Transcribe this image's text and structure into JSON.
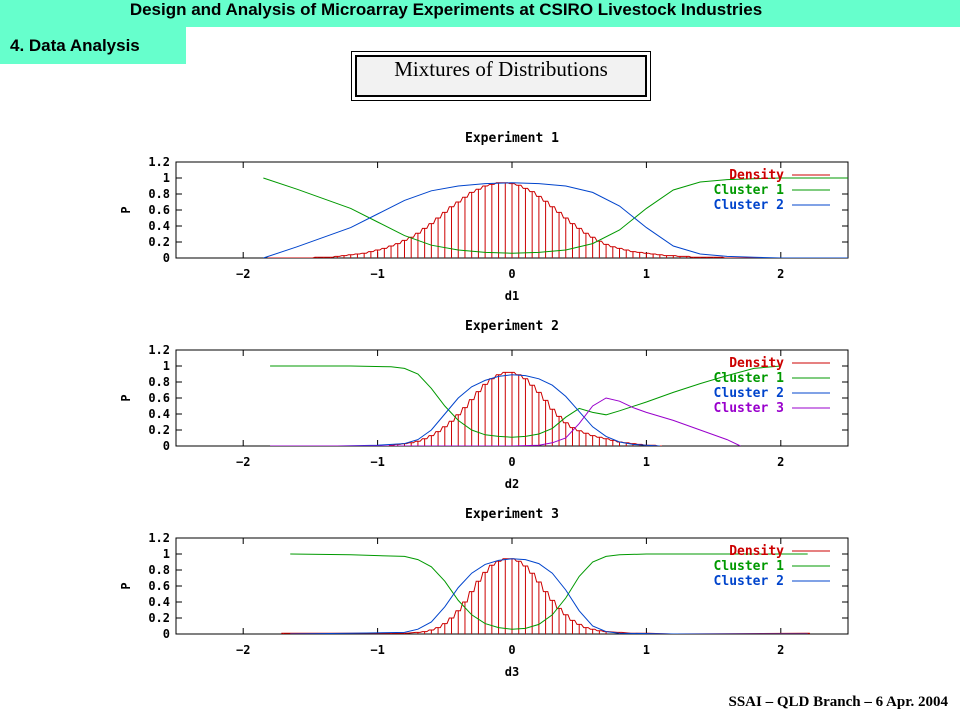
{
  "header": {
    "title": "Design and Analysis of Microarray Experiments at CSIRO Livestock Industries",
    "section": "4. Data Analysis"
  },
  "slide_title": "Mixtures of Distributions",
  "footer": "SSAI – QLD Branch – 6 Apr. 2004",
  "colors": {
    "density": "#cc0000",
    "cluster1": "#009900",
    "cluster2": "#0044cc",
    "cluster3": "#9900cc",
    "accent_bar": "#66ffcc"
  },
  "chart_data": [
    {
      "type": "line",
      "title": "Experiment 1",
      "xlabel": "d1",
      "ylabel": "P",
      "xlim": [
        -2.5,
        2.5
      ],
      "ylim": [
        0,
        1.2
      ],
      "xticks": [
        -2,
        -1,
        0,
        1,
        2
      ],
      "yticks": [
        0,
        0.2,
        0.4,
        0.6,
        0.8,
        1,
        1.2
      ],
      "grid": false,
      "legend_position": "top-right",
      "series": [
        {
          "name": "Density",
          "kind": "impulse",
          "color": "#cc0000",
          "x": [
            -1.8,
            -1.75,
            -1.7,
            -1.65,
            -1.6,
            -1.55,
            -1.5,
            -1.45,
            -1.4,
            -1.35,
            -1.3,
            -1.25,
            -1.2,
            -1.15,
            -1.1,
            -1.05,
            -1.0,
            -0.95,
            -0.9,
            -0.85,
            -0.8,
            -0.75,
            -0.7,
            -0.65,
            -0.6,
            -0.55,
            -0.5,
            -0.45,
            -0.4,
            -0.35,
            -0.3,
            -0.25,
            -0.2,
            -0.15,
            -0.1,
            -0.05,
            0.0,
            0.05,
            0.1,
            0.15,
            0.2,
            0.25,
            0.3,
            0.35,
            0.4,
            0.45,
            0.5,
            0.55,
            0.6,
            0.65,
            0.7,
            0.75,
            0.8,
            0.85,
            0.9,
            0.95,
            1.0,
            1.05,
            1.1,
            1.15,
            1.2,
            1.25,
            1.3,
            1.35,
            1.4,
            1.45,
            1.5,
            1.55,
            1.6,
            1.65,
            1.7,
            1.75,
            1.8,
            1.85,
            1.9,
            1.95
          ],
          "y": [
            0,
            0,
            0,
            0,
            0,
            0,
            0,
            0.01,
            0.01,
            0.01,
            0.02,
            0.03,
            0.04,
            0.05,
            0.06,
            0.08,
            0.1,
            0.12,
            0.15,
            0.18,
            0.22,
            0.26,
            0.31,
            0.37,
            0.43,
            0.5,
            0.57,
            0.64,
            0.7,
            0.76,
            0.82,
            0.86,
            0.9,
            0.92,
            0.94,
            0.94,
            0.93,
            0.91,
            0.87,
            0.83,
            0.77,
            0.71,
            0.64,
            0.57,
            0.5,
            0.43,
            0.37,
            0.31,
            0.26,
            0.21,
            0.17,
            0.14,
            0.12,
            0.1,
            0.08,
            0.07,
            0.06,
            0.05,
            0.04,
            0.03,
            0.03,
            0.02,
            0.02,
            0.01,
            0.01,
            0.01,
            0.01,
            0.01,
            0,
            0,
            0,
            0,
            0,
            0,
            0,
            0
          ]
        },
        {
          "name": "Cluster 1",
          "kind": "line",
          "color": "#009900",
          "x": [
            -1.85,
            -1.6,
            -1.4,
            -1.2,
            -1.0,
            -0.8,
            -0.6,
            -0.4,
            -0.2,
            0.0,
            0.2,
            0.4,
            0.6,
            0.8,
            1.0,
            1.2,
            1.4,
            1.6,
            1.8,
            2.0,
            2.2,
            2.5
          ],
          "y": [
            1.0,
            0.86,
            0.74,
            0.62,
            0.45,
            0.28,
            0.16,
            0.1,
            0.07,
            0.06,
            0.07,
            0.1,
            0.18,
            0.35,
            0.62,
            0.85,
            0.95,
            0.98,
            0.99,
            1.0,
            1.0,
            1.0
          ]
        },
        {
          "name": "Cluster 2",
          "kind": "line",
          "color": "#0044cc",
          "x": [
            -1.85,
            -1.6,
            -1.4,
            -1.2,
            -1.0,
            -0.8,
            -0.6,
            -0.4,
            -0.2,
            0.0,
            0.2,
            0.4,
            0.6,
            0.8,
            1.0,
            1.2,
            1.4,
            1.6,
            1.8,
            2.0,
            2.5
          ],
          "y": [
            0.0,
            0.14,
            0.26,
            0.38,
            0.55,
            0.72,
            0.84,
            0.9,
            0.93,
            0.94,
            0.93,
            0.9,
            0.82,
            0.65,
            0.38,
            0.15,
            0.05,
            0.02,
            0.01,
            0.0,
            0.0
          ]
        }
      ]
    },
    {
      "type": "line",
      "title": "Experiment 2",
      "xlabel": "d2",
      "ylabel": "P",
      "xlim": [
        -2.5,
        2.5
      ],
      "ylim": [
        0,
        1.2
      ],
      "xticks": [
        -2,
        -1,
        0,
        1,
        2
      ],
      "yticks": [
        0,
        0.2,
        0.4,
        0.6,
        0.8,
        1,
        1.2
      ],
      "grid": false,
      "legend_position": "top-right",
      "series": [
        {
          "name": "Density",
          "kind": "impulse",
          "color": "#cc0000",
          "x": [
            -0.9,
            -0.85,
            -0.8,
            -0.75,
            -0.7,
            -0.65,
            -0.6,
            -0.55,
            -0.5,
            -0.45,
            -0.4,
            -0.35,
            -0.3,
            -0.25,
            -0.2,
            -0.15,
            -0.1,
            -0.05,
            0.0,
            0.05,
            0.1,
            0.15,
            0.2,
            0.25,
            0.3,
            0.35,
            0.4,
            0.45,
            0.5,
            0.55,
            0.6,
            0.65,
            0.7,
            0.75,
            0.8,
            0.85,
            0.9,
            0.95,
            1.0,
            1.05,
            1.1
          ],
          "y": [
            0.01,
            0.02,
            0.03,
            0.04,
            0.06,
            0.09,
            0.13,
            0.18,
            0.24,
            0.31,
            0.39,
            0.48,
            0.58,
            0.68,
            0.77,
            0.84,
            0.89,
            0.92,
            0.92,
            0.89,
            0.84,
            0.76,
            0.67,
            0.57,
            0.46,
            0.37,
            0.29,
            0.23,
            0.19,
            0.16,
            0.13,
            0.11,
            0.09,
            0.07,
            0.05,
            0.04,
            0.03,
            0.02,
            0.01,
            0.01,
            0.0
          ]
        },
        {
          "name": "Cluster 1",
          "kind": "line",
          "color": "#009900",
          "x": [
            -1.8,
            -1.5,
            -1.2,
            -0.9,
            -0.8,
            -0.7,
            -0.6,
            -0.5,
            -0.4,
            -0.3,
            -0.2,
            -0.1,
            0.0,
            0.1,
            0.2,
            0.3,
            0.4,
            0.5,
            0.6,
            0.7,
            0.8,
            1.0,
            1.2,
            1.4,
            1.6,
            1.8,
            2.0
          ],
          "y": [
            1.0,
            1.0,
            1.0,
            0.99,
            0.97,
            0.9,
            0.72,
            0.5,
            0.32,
            0.2,
            0.14,
            0.12,
            0.11,
            0.12,
            0.15,
            0.22,
            0.36,
            0.47,
            0.42,
            0.39,
            0.44,
            0.55,
            0.67,
            0.78,
            0.88,
            0.97,
            1.0
          ]
        },
        {
          "name": "Cluster 2",
          "kind": "line",
          "color": "#0044cc",
          "x": [
            -1.3,
            -1.0,
            -0.8,
            -0.7,
            -0.6,
            -0.5,
            -0.4,
            -0.3,
            -0.2,
            -0.1,
            0.0,
            0.1,
            0.2,
            0.3,
            0.4,
            0.5,
            0.6,
            0.7,
            0.8,
            0.9,
            1.0,
            1.1
          ],
          "y": [
            0.0,
            0.01,
            0.03,
            0.08,
            0.2,
            0.4,
            0.6,
            0.74,
            0.82,
            0.87,
            0.89,
            0.88,
            0.84,
            0.76,
            0.62,
            0.43,
            0.24,
            0.12,
            0.05,
            0.02,
            0.01,
            0.0
          ]
        },
        {
          "name": "Cluster 3",
          "kind": "line",
          "color": "#9900cc",
          "x": [
            -1.8,
            -1.0,
            0.0,
            0.2,
            0.3,
            0.4,
            0.5,
            0.6,
            0.7,
            0.8,
            0.9,
            1.0,
            1.2,
            1.4,
            1.6,
            1.7
          ],
          "y": [
            0.0,
            0.0,
            0.0,
            0.01,
            0.04,
            0.1,
            0.28,
            0.5,
            0.6,
            0.56,
            0.48,
            0.42,
            0.32,
            0.2,
            0.08,
            0.0
          ]
        }
      ]
    },
    {
      "type": "line",
      "title": "Experiment 3",
      "xlabel": "d3",
      "ylabel": "P",
      "xlim": [
        -2.5,
        2.5
      ],
      "ylim": [
        0,
        1.2
      ],
      "xticks": [
        -2,
        -1,
        0,
        1,
        2
      ],
      "yticks": [
        0,
        0.2,
        0.4,
        0.6,
        0.8,
        1,
        1.2
      ],
      "grid": false,
      "legend_position": "top-right",
      "series": [
        {
          "name": "Density",
          "kind": "impulse",
          "color": "#cc0000",
          "x": [
            -1.7,
            -0.9,
            -0.8,
            -0.7,
            -0.65,
            -0.6,
            -0.55,
            -0.5,
            -0.45,
            -0.4,
            -0.35,
            -0.3,
            -0.25,
            -0.2,
            -0.15,
            -0.1,
            -0.05,
            0.0,
            0.05,
            0.1,
            0.15,
            0.2,
            0.25,
            0.3,
            0.35,
            0.4,
            0.45,
            0.5,
            0.55,
            0.6,
            0.65,
            0.7,
            0.8,
            0.9,
            1.0,
            1.2,
            2.2
          ],
          "y": [
            0.01,
            0.01,
            0.01,
            0.02,
            0.03,
            0.05,
            0.08,
            0.13,
            0.2,
            0.29,
            0.4,
            0.53,
            0.66,
            0.77,
            0.86,
            0.91,
            0.94,
            0.94,
            0.91,
            0.85,
            0.76,
            0.65,
            0.53,
            0.42,
            0.32,
            0.24,
            0.17,
            0.12,
            0.08,
            0.06,
            0.04,
            0.03,
            0.02,
            0.01,
            0.01,
            0.0,
            0.01
          ]
        },
        {
          "name": "Cluster 1",
          "kind": "line",
          "color": "#009900",
          "x": [
            -1.65,
            -1.2,
            -0.8,
            -0.7,
            -0.6,
            -0.5,
            -0.4,
            -0.3,
            -0.2,
            -0.1,
            0.0,
            0.1,
            0.2,
            0.3,
            0.4,
            0.5,
            0.6,
            0.7,
            0.8,
            1.0,
            1.4,
            1.8,
            2.2
          ],
          "y": [
            1.0,
            0.99,
            0.97,
            0.93,
            0.84,
            0.66,
            0.42,
            0.24,
            0.13,
            0.08,
            0.06,
            0.07,
            0.12,
            0.24,
            0.45,
            0.72,
            0.9,
            0.97,
            0.99,
            1.0,
            1.0,
            1.0,
            1.0
          ]
        },
        {
          "name": "Cluster 2",
          "kind": "line",
          "color": "#0044cc",
          "x": [
            -1.65,
            -1.2,
            -0.8,
            -0.7,
            -0.6,
            -0.5,
            -0.4,
            -0.3,
            -0.2,
            -0.1,
            0.0,
            0.1,
            0.2,
            0.3,
            0.4,
            0.5,
            0.6,
            0.7,
            0.8,
            1.2,
            1.8,
            2.2
          ],
          "y": [
            0.0,
            0.01,
            0.02,
            0.06,
            0.15,
            0.34,
            0.58,
            0.76,
            0.87,
            0.92,
            0.94,
            0.93,
            0.88,
            0.76,
            0.55,
            0.29,
            0.1,
            0.03,
            0.01,
            0.0,
            0.0,
            0.0
          ]
        }
      ]
    }
  ]
}
